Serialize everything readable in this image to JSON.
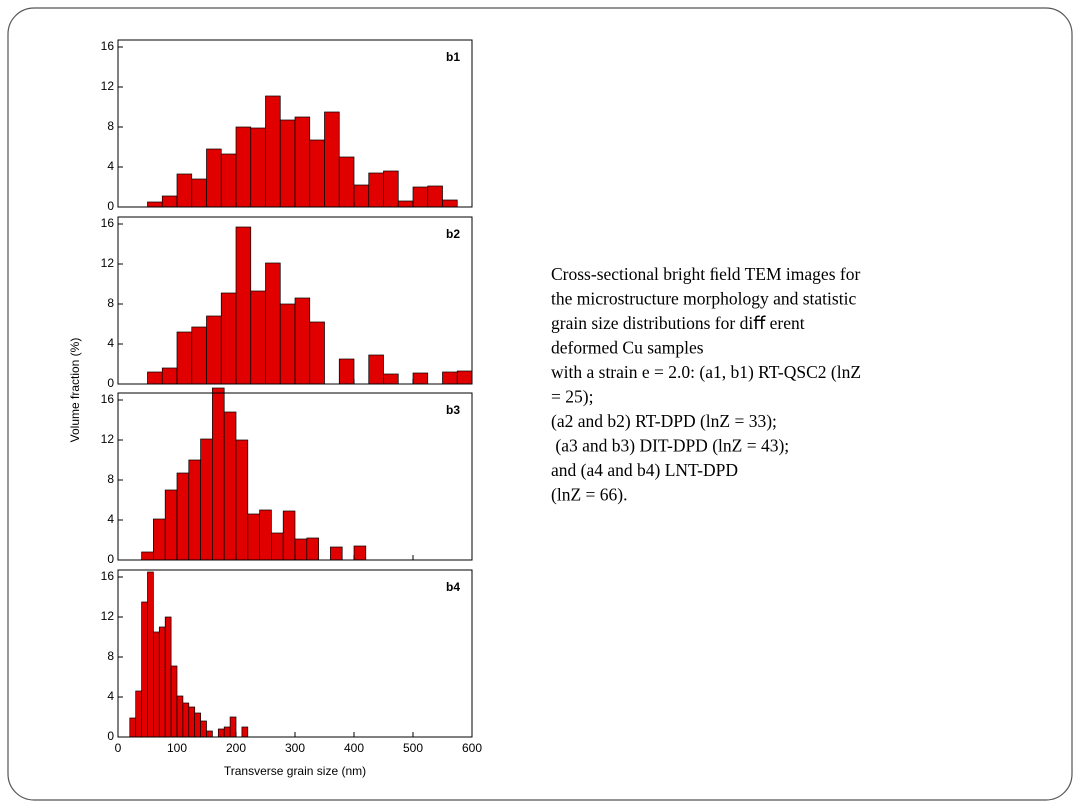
{
  "figure": {
    "ylabel": "Volume fraction (%)",
    "xlabel": "Transverse grain size (nm)"
  },
  "chart_data": [
    {
      "type": "histogram",
      "title": "b1",
      "color": "#e00000",
      "bins": [
        50,
        75,
        100,
        125,
        150,
        175,
        200,
        225,
        250,
        275,
        300,
        325,
        350,
        375,
        400,
        425,
        450,
        475,
        500,
        525,
        550,
        575
      ],
      "values": [
        0.5,
        1.1,
        3.3,
        2.8,
        5.8,
        5.3,
        8.0,
        7.9,
        11.1,
        8.7,
        9.0,
        6.7,
        9.5,
        5.0,
        2.2,
        3.4,
        3.6,
        0.6,
        2.0,
        2.1,
        0.7
      ],
      "xlim": [
        0,
        600
      ],
      "xticks": [
        0,
        100,
        200,
        300,
        400,
        500,
        600
      ],
      "ylim": [
        0,
        16.7
      ],
      "yticks": [
        0,
        4,
        8,
        12,
        16
      ]
    },
    {
      "type": "histogram",
      "title": "b2",
      "color": "#e00000",
      "bins": [
        50,
        75,
        100,
        125,
        150,
        175,
        200,
        225,
        250,
        275,
        300,
        325,
        350,
        375,
        400,
        425,
        450,
        475,
        500,
        525,
        550,
        575,
        600
      ],
      "values": [
        1.2,
        1.6,
        5.2,
        5.7,
        6.8,
        9.1,
        15.7,
        9.3,
        12.1,
        8.0,
        8.6,
        6.2,
        0,
        2.5,
        0,
        2.9,
        1.0,
        0,
        1.1,
        0,
        1.2,
        1.3
      ],
      "xlim": [
        0,
        600
      ],
      "xticks": [
        0,
        100,
        200,
        300,
        400,
        500,
        600
      ],
      "ylim": [
        0,
        16.7
      ],
      "yticks": [
        0,
        4,
        8,
        12,
        16
      ]
    },
    {
      "type": "histogram",
      "title": "b3",
      "color": "#e00000",
      "bins": [
        40,
        60,
        80,
        100,
        120,
        140,
        160,
        180,
        200,
        220,
        240,
        260,
        280,
        300,
        320,
        340,
        360,
        380,
        400,
        420
      ],
      "values": [
        0.8,
        4.1,
        7.0,
        8.7,
        10.0,
        12.1,
        17.2,
        14.8,
        12.0,
        4.6,
        5.0,
        2.7,
        4.9,
        2.1,
        2.2,
        0,
        1.3,
        0,
        1.4
      ],
      "xlim": [
        0,
        600
      ],
      "xticks": [
        0,
        100,
        200,
        300,
        400,
        500,
        600
      ],
      "ylim": [
        0,
        16.7
      ],
      "yticks": [
        0,
        4,
        8,
        12,
        16
      ]
    },
    {
      "type": "histogram",
      "title": "b4",
      "color": "#e00000",
      "bins": [
        20,
        30,
        40,
        50,
        60,
        70,
        80,
        90,
        100,
        110,
        120,
        130,
        140,
        150,
        160,
        170,
        180,
        190,
        200,
        210,
        220
      ],
      "values": [
        1.9,
        4.6,
        13.5,
        16.5,
        10.5,
        11.0,
        12.0,
        7.1,
        4.1,
        3.4,
        3.0,
        2.4,
        1.6,
        0.6,
        0,
        0.8,
        1.0,
        2.0,
        0,
        1.0
      ],
      "xlim": [
        0,
        600
      ],
      "xticks": [
        0,
        100,
        200,
        300,
        400,
        500,
        600
      ],
      "ylim": [
        0,
        16.7
      ],
      "yticks": [
        0,
        4,
        8,
        12,
        16
      ]
    }
  ],
  "caption": [
    "Cross-sectional bright ﬁeld TEM images for",
    "the microstructure morphology and statistic",
    "grain size distributions for diﬀ erent",
    "deformed Cu samples",
    "with a strain e = 2.0: (a1, b1) RT-QSC2 (lnZ",
    "= 25);",
    "(a2 and b2) RT-DPD (lnZ = 33);",
    " (a3 and b3) DIT-DPD (lnZ = 43);",
    "and (a4 and b4) LNT-DPD",
    "(lnZ = 66)."
  ]
}
